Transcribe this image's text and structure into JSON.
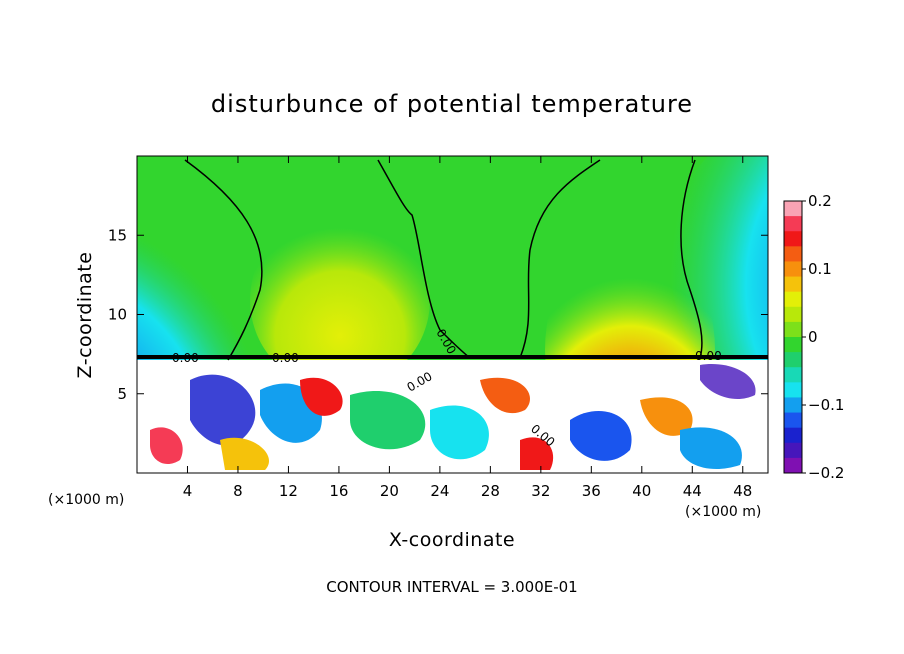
{
  "chart_data": {
    "type": "heatmap",
    "title": "disturbunce of potential temperature",
    "xlabel": "X-coordinate",
    "ylabel": "Z-coordinate",
    "x_unit_left": "(×1000 m)",
    "x_unit_right": "(×1000 m)",
    "xlim": [
      0,
      50
    ],
    "ylim": [
      0,
      20
    ],
    "x_ticks": [
      4,
      8,
      12,
      16,
      20,
      24,
      28,
      32,
      36,
      40,
      44,
      48
    ],
    "y_ticks": [
      5,
      10,
      15
    ],
    "colorbar": {
      "range": [
        -0.2,
        0.2
      ],
      "tick_values": [
        0.2,
        0.1,
        0,
        -0.1,
        -0.2
      ],
      "tick_labels": [
        "0.2",
        "0.1",
        "0",
        "−0.1",
        "−0.2"
      ],
      "colors": [
        "#f9a3b4",
        "#f53b55",
        "#f01818",
        "#f45d12",
        "#f7900d",
        "#f5c20b",
        "#e3ef08",
        "#b8e80a",
        "#7de01a",
        "#32d52e",
        "#1fcf6d",
        "#18d9b6",
        "#17e2ef",
        "#139fef",
        "#1a55ee",
        "#1a22ce",
        "#4616bb",
        "#7f10b2"
      ]
    },
    "contour_labels": [
      "0.00",
      "0.00",
      "0.00",
      "0.00",
      "0.00",
      "0.00"
    ],
    "field_description_levels": {
      "upper_layer_typical": 0.0,
      "lower_turbulent_min": -0.2,
      "lower_turbulent_max": 0.2
    },
    "contour_interval_text": "CONTOUR INTERVAL =  3.000E-01"
  }
}
